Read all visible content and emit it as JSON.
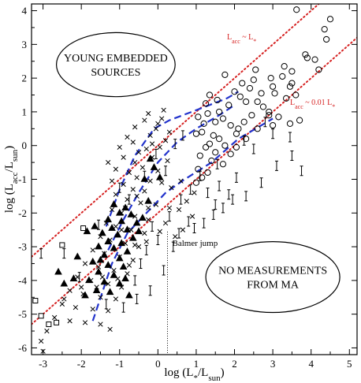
{
  "chart_data": {
    "type": "scatter",
    "xlim": [
      -3.3,
      5.2
    ],
    "ylim": [
      -6.2,
      4.2
    ],
    "x_ticks": [
      -3,
      -2,
      -1,
      0,
      1,
      2,
      3,
      4,
      5
    ],
    "y_ticks": [
      -6,
      -5,
      -4,
      -3,
      -2,
      -1,
      0,
      1,
      2,
      3,
      4
    ],
    "xlabel": {
      "main": "log (L",
      "sub1": "*",
      "mid": "/L",
      "sub2": "sun",
      "end": ")"
    },
    "ylabel": {
      "main": "log (L",
      "sub1": "acc",
      "mid": "/L",
      "sub2": "sun",
      "end": ")"
    },
    "grid": false,
    "lines": [
      {
        "label_main": "L",
        "label_sub": "acc",
        "label_rest": " ~ L",
        "label_sub2": "*",
        "color": "#d62222",
        "style": "dotted",
        "intercept": 0,
        "slope": 1,
        "x_range": [
          -3.3,
          5.2
        ]
      },
      {
        "label_main": "L",
        "label_sub": "acc",
        "label_rest": " ~ 0.01 L",
        "label_sub2": "*",
        "color": "#d62222",
        "style": "dotted",
        "intercept": -2,
        "slope": 1,
        "x_range": [
          -3.3,
          5.2
        ]
      }
    ],
    "blue_bounds": {
      "color": "#2233cc",
      "upper": [
        [
          -1.35,
          -2.4
        ],
        [
          -1.0,
          -1.3
        ],
        [
          -0.6,
          -0.3
        ],
        [
          -0.1,
          0.5
        ],
        [
          0.3,
          0.75
        ],
        [
          1.0,
          1.05
        ],
        [
          1.8,
          1.4
        ],
        [
          2.1,
          1.6
        ]
      ],
      "middle": [
        [
          -1.3,
          -3.1
        ],
        [
          -0.9,
          -2.2
        ],
        [
          -0.5,
          -1.4
        ],
        [
          0,
          -0.5
        ],
        [
          0.5,
          0.1
        ],
        [
          1.0,
          0.5
        ],
        [
          1.6,
          0.9
        ],
        [
          2.0,
          1.2
        ]
      ],
      "lower": [
        [
          -1.7,
          -5.2
        ],
        [
          -1.2,
          -3.5
        ],
        [
          -0.8,
          -2.6
        ],
        [
          -0.3,
          -2.0
        ],
        [
          0.2,
          -1.4
        ],
        [
          0.7,
          -1.0
        ],
        [
          1.4,
          -0.5
        ],
        [
          2.1,
          0.2
        ],
        [
          3.0,
          0.8
        ]
      ]
    },
    "balmer_jump": {
      "label": "Balmer jump",
      "x": 0.25,
      "y_from": -2.55,
      "y_to": -6.2
    },
    "ellipses": [
      {
        "lines": [
          "YOUNG EMBEDDED",
          "SOURCES"
        ],
        "cx": -1.1,
        "cy": 2.4,
        "rx": 1.55,
        "ry": 0.95
      },
      {
        "lines": [
          "NO MEASUREMENTS",
          "FROM MA"
        ],
        "cx": 3.0,
        "cy": -3.9,
        "rx": 1.75,
        "ry": 1.05
      }
    ],
    "series": [
      {
        "marker": "circle",
        "points": [
          [
            3.62,
            4.03
          ],
          [
            4.5,
            3.75
          ],
          [
            4.35,
            3.45
          ],
          [
            4.4,
            3.15
          ],
          [
            3.85,
            2.7
          ],
          [
            3.9,
            2.6
          ],
          [
            4.1,
            2.55
          ],
          [
            3.3,
            2.35
          ],
          [
            4.2,
            2.25
          ],
          [
            3.5,
            2.2
          ],
          [
            3.25,
            2.05
          ],
          [
            1.75,
            2.1
          ],
          [
            2.55,
            2.25
          ],
          [
            2.95,
            2.0
          ],
          [
            2.5,
            1.95
          ],
          [
            2.2,
            1.85
          ],
          [
            2.4,
            1.7
          ],
          [
            3.0,
            1.75
          ],
          [
            3.05,
            1.55
          ],
          [
            3.6,
            1.5
          ],
          [
            2.0,
            1.6
          ],
          [
            2.15,
            1.45
          ],
          [
            2.7,
            1.55
          ],
          [
            2.6,
            1.3
          ],
          [
            2.3,
            1.3
          ],
          [
            1.55,
            1.35
          ],
          [
            1.25,
            1.25
          ],
          [
            1.85,
            1.2
          ],
          [
            3.35,
            1.4
          ],
          [
            2.75,
            1.15
          ],
          [
            2.9,
            1.0
          ],
          [
            1.6,
            1.0
          ],
          [
            1.3,
            0.95
          ],
          [
            1.05,
            0.85
          ],
          [
            1.7,
            0.8
          ],
          [
            1.2,
            0.65
          ],
          [
            1.5,
            0.7
          ],
          [
            1.9,
            0.6
          ],
          [
            2.1,
            0.5
          ],
          [
            1.15,
            0.4
          ],
          [
            1.45,
            0.3
          ],
          [
            1.6,
            0.2
          ],
          [
            1.0,
            0.35
          ],
          [
            1.35,
            0.05
          ],
          [
            1.75,
            0.0
          ],
          [
            1.25,
            -0.05
          ],
          [
            1.5,
            -0.2
          ],
          [
            1.1,
            -0.3
          ],
          [
            1.9,
            -0.25
          ],
          [
            1.4,
            -0.45
          ],
          [
            1.7,
            -0.55
          ],
          [
            1.05,
            -0.7
          ],
          [
            1.15,
            -0.95
          ],
          [
            1.3,
            -0.8
          ],
          [
            3.5,
            1.85
          ],
          [
            3.45,
            1.75
          ],
          [
            2.25,
            0.7
          ],
          [
            2.45,
            0.9
          ],
          [
            2.05,
            0.35
          ],
          [
            1.0,
            -1.1
          ],
          [
            2.3,
            0.2
          ],
          [
            2.6,
            0.5
          ],
          [
            2.9,
            0.9
          ],
          [
            3.15,
            0.85
          ],
          [
            3.45,
            0.65
          ],
          [
            3.7,
            0.75
          ],
          [
            2.05,
            -0.05
          ],
          [
            3.0,
            0.6
          ],
          [
            1.35,
            1.5
          ]
        ]
      },
      {
        "marker": "x",
        "points": [
          [
            0.1,
            0.8
          ],
          [
            0.0,
            0.65
          ],
          [
            -0.05,
            0.5
          ],
          [
            -0.2,
            0.3
          ],
          [
            0.2,
            0.15
          ],
          [
            0.05,
            -0.05
          ],
          [
            -0.3,
            -0.1
          ],
          [
            -0.5,
            -0.2
          ],
          [
            -0.15,
            -0.35
          ],
          [
            0.25,
            -0.45
          ],
          [
            -0.6,
            -0.5
          ],
          [
            -0.4,
            -0.65
          ],
          [
            0.0,
            -0.75
          ],
          [
            -0.75,
            -0.8
          ],
          [
            -0.55,
            -0.95
          ],
          [
            -0.2,
            -1.05
          ],
          [
            0.1,
            -1.1
          ],
          [
            -0.9,
            -1.15
          ],
          [
            -0.65,
            -1.3
          ],
          [
            -0.35,
            -1.35
          ],
          [
            -1.1,
            -1.45
          ],
          [
            -0.8,
            -1.6
          ],
          [
            -0.45,
            -1.7
          ],
          [
            -0.05,
            -1.75
          ],
          [
            0.3,
            -1.85
          ],
          [
            -1.2,
            -1.9
          ],
          [
            -0.95,
            -2.0
          ],
          [
            -0.6,
            -2.1
          ],
          [
            -0.25,
            -2.2
          ],
          [
            0.2,
            -2.3
          ],
          [
            -1.35,
            -2.3
          ],
          [
            -1.1,
            -2.4
          ],
          [
            -0.7,
            -2.5
          ],
          [
            -0.35,
            -2.6
          ],
          [
            0.05,
            -2.55
          ],
          [
            -1.5,
            -2.7
          ],
          [
            -1.25,
            -2.8
          ],
          [
            -0.85,
            -2.9
          ],
          [
            -0.5,
            -3.0
          ],
          [
            -1.7,
            -3.1
          ],
          [
            -1.4,
            -3.2
          ],
          [
            -1.0,
            -3.3
          ],
          [
            -0.65,
            -3.4
          ],
          [
            -1.9,
            -3.5
          ],
          [
            -1.55,
            -3.6
          ],
          [
            -1.15,
            -3.7
          ],
          [
            -0.8,
            -3.8
          ],
          [
            -2.1,
            -3.9
          ],
          [
            -1.75,
            -4.0
          ],
          [
            -1.3,
            -4.1
          ],
          [
            -0.95,
            -4.2
          ],
          [
            -2.3,
            -4.3
          ],
          [
            -1.95,
            -4.4
          ],
          [
            -1.5,
            -4.5
          ],
          [
            -1.1,
            -4.55
          ],
          [
            -2.5,
            -4.7
          ],
          [
            -2.15,
            -4.8
          ],
          [
            -1.7,
            -4.85
          ],
          [
            -1.3,
            -4.9
          ],
          [
            -2.7,
            -5.1
          ],
          [
            -2.3,
            -5.2
          ],
          [
            -1.9,
            -5.25
          ],
          [
            -1.5,
            -5.3
          ],
          [
            -2.9,
            -5.5
          ],
          [
            -1.25,
            -5.45
          ],
          [
            -3.05,
            -5.8
          ],
          [
            -3.0,
            -6.1
          ],
          [
            -2.45,
            -4.55
          ],
          [
            -1.6,
            -4.2
          ],
          [
            -1.05,
            -3.95
          ],
          [
            -0.6,
            -2.95
          ],
          [
            -0.95,
            -2.5
          ],
          [
            -0.3,
            -2.85
          ],
          [
            0.45,
            -2.7
          ],
          [
            0.65,
            -2.5
          ],
          [
            0.9,
            -2.1
          ],
          [
            -1.45,
            -3.9
          ],
          [
            -2.0,
            -4.2
          ],
          [
            -0.75,
            -3.55
          ],
          [
            -0.25,
            -1.85
          ],
          [
            0.55,
            -1.9
          ],
          [
            0.75,
            -1.65
          ],
          [
            0.95,
            -1.4
          ],
          [
            0.35,
            -1.25
          ],
          [
            0.6,
            -1.05
          ],
          [
            -0.15,
            0.05
          ],
          [
            -0.65,
            0.1
          ],
          [
            -0.9,
            -0.35
          ],
          [
            -1.1,
            -0.7
          ],
          [
            -1.0,
            -0.05
          ],
          [
            0.15,
            1.05
          ],
          [
            -0.25,
            0.95
          ],
          [
            -0.6,
            0.55
          ],
          [
            -0.35,
            0.75
          ],
          [
            0.3,
            0.4
          ],
          [
            -0.8,
            0.25
          ],
          [
            -1.2,
            -1.05
          ],
          [
            -1.3,
            -0.5
          ],
          [
            -0.85,
            -1.85
          ],
          [
            -0.55,
            -1.5
          ]
        ]
      },
      {
        "marker": "triangle",
        "points": [
          [
            -1.15,
            -1.75
          ],
          [
            -0.85,
            -1.85
          ],
          [
            -1.0,
            -2.0
          ],
          [
            -0.7,
            -2.05
          ],
          [
            -1.3,
            -2.2
          ],
          [
            -0.95,
            -2.25
          ],
          [
            -0.55,
            -2.3
          ],
          [
            -1.2,
            -2.45
          ],
          [
            -0.8,
            -2.5
          ],
          [
            -1.45,
            -2.6
          ],
          [
            -1.05,
            -2.65
          ],
          [
            -0.65,
            -2.75
          ],
          [
            -1.3,
            -2.85
          ],
          [
            -0.95,
            -2.9
          ],
          [
            -1.55,
            -3.0
          ],
          [
            -1.15,
            -3.05
          ],
          [
            -0.8,
            -3.15
          ],
          [
            -1.4,
            -3.25
          ],
          [
            -1.0,
            -3.35
          ],
          [
            -1.7,
            -3.45
          ],
          [
            -1.3,
            -3.55
          ],
          [
            -0.9,
            -3.6
          ],
          [
            -1.55,
            -3.75
          ],
          [
            -1.15,
            -3.85
          ],
          [
            -1.8,
            -4.0
          ],
          [
            -1.4,
            -4.05
          ],
          [
            -1.0,
            -4.1
          ],
          [
            -2.2,
            -3.95
          ],
          [
            -2.6,
            -3.75
          ],
          [
            -1.6,
            -4.3
          ],
          [
            -1.9,
            -4.45
          ],
          [
            -0.85,
            -3.95
          ],
          [
            -1.25,
            -4.35
          ],
          [
            -2.45,
            -4.1
          ],
          [
            -0.5,
            -2.55
          ],
          [
            -0.4,
            -2.15
          ],
          [
            -0.25,
            -1.65
          ],
          [
            -0.35,
            -1.0
          ],
          [
            -0.2,
            -0.4
          ],
          [
            -0.1,
            -0.65
          ],
          [
            0.05,
            -0.95
          ],
          [
            -1.85,
            -2.55
          ],
          [
            -1.65,
            -2.4
          ],
          [
            -2.1,
            -3.3
          ],
          [
            -0.75,
            -4.45
          ],
          [
            -1.5,
            -3.4
          ]
        ]
      },
      {
        "marker": "errorbar",
        "points": [
          [
            0.8,
            -2.25
          ],
          [
            0.95,
            -2.45
          ],
          [
            1.2,
            -2.3
          ],
          [
            1.45,
            -2.05
          ],
          [
            1.7,
            -1.85
          ],
          [
            1.95,
            -1.6
          ],
          [
            2.3,
            -1.5
          ],
          [
            2.7,
            -1.1
          ],
          [
            3.1,
            -0.6
          ],
          [
            3.5,
            -0.3
          ],
          [
            3.75,
            -0.75
          ],
          [
            2.05,
            -0.95
          ],
          [
            1.6,
            -1.2
          ],
          [
            1.3,
            -1.4
          ],
          [
            0.55,
            -2.6
          ],
          [
            0.4,
            -3.0
          ],
          [
            0.0,
            -2.8
          ],
          [
            -0.3,
            -3.1
          ],
          [
            -0.45,
            -3.5
          ],
          [
            -0.6,
            -4.0
          ],
          [
            -0.15,
            -2.4
          ],
          [
            0.3,
            -2.1
          ],
          [
            0.6,
            -1.6
          ],
          [
            0.85,
            -1.3
          ],
          [
            1.1,
            -0.9
          ],
          [
            1.55,
            -0.55
          ],
          [
            2.25,
            0.15
          ],
          [
            2.5,
            -0.1
          ],
          [
            3.0,
            0.35
          ],
          [
            2.8,
            0.7
          ],
          [
            3.45,
            0.25
          ],
          [
            0.2,
            -0.75
          ],
          [
            -0.05,
            -0.25
          ],
          [
            0.45,
            0.05
          ],
          [
            0.65,
            0.3
          ],
          [
            -0.35,
            -0.9
          ],
          [
            -0.75,
            -1.6
          ],
          [
            -1.0,
            -1.25
          ],
          [
            -1.55,
            -2.35
          ],
          [
            -2.45,
            -3.2
          ],
          [
            -3.05,
            -3.2
          ],
          [
            -2.05,
            -3.9
          ],
          [
            -1.35,
            -4.7
          ],
          [
            -0.9,
            -4.8
          ],
          [
            -0.55,
            -4.55
          ],
          [
            -0.2,
            -4.3
          ],
          [
            0.15,
            -3.7
          ],
          [
            1.5,
            -1.75
          ],
          [
            1.85,
            -1.45
          ]
        ]
      },
      {
        "marker": "square",
        "points": [
          [
            -2.5,
            -2.95
          ],
          [
            -1.95,
            -2.45
          ],
          [
            -2.85,
            -5.3
          ],
          [
            -3.2,
            -4.6
          ],
          [
            -2.65,
            -5.25
          ],
          [
            -3.05,
            -5.05
          ]
        ]
      }
    ]
  }
}
